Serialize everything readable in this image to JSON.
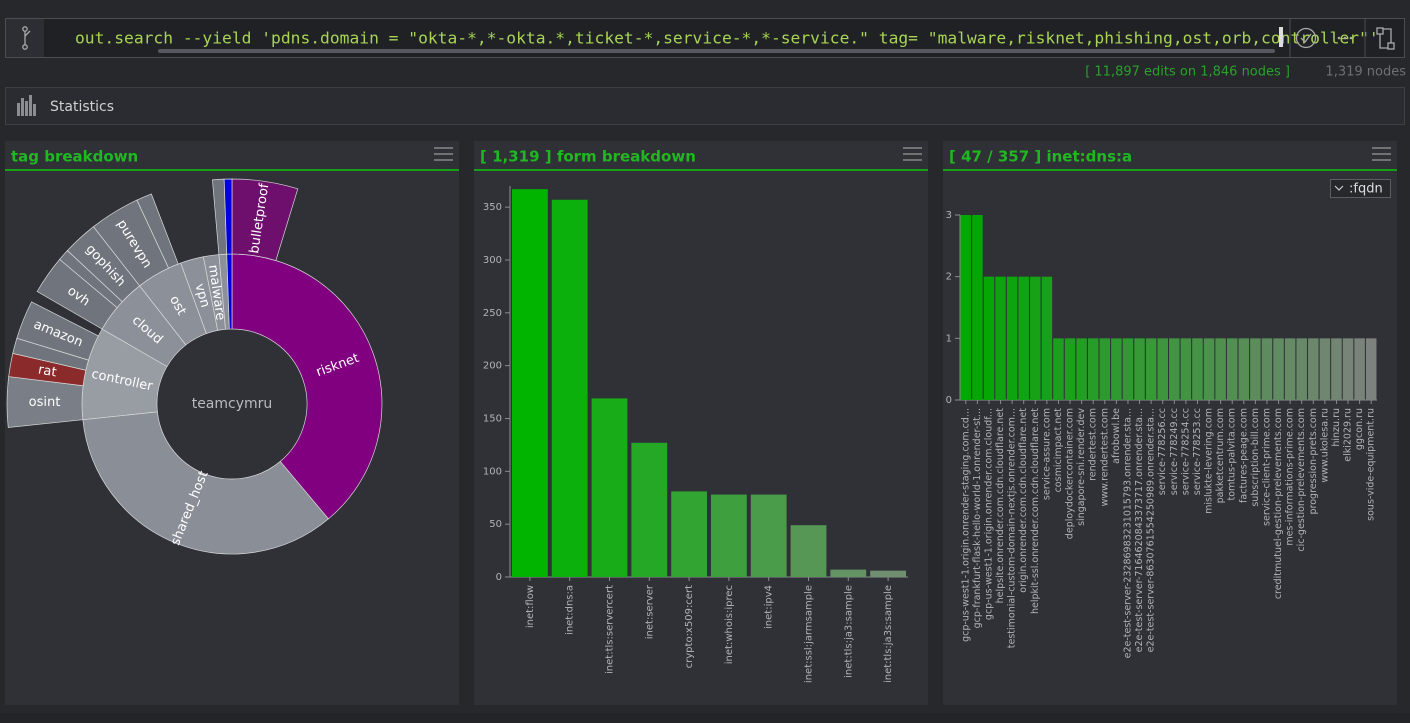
{
  "query": "out.search --yield 'pdns.domain = \"okta-*,*-okta.*,ticket-*,service-*,*-service.\" tag= \"malware,risknet,phishing,ost,orb,controller\"'",
  "status": {
    "edits": "[ 11,897 edits on 1,846 nodes ]",
    "nodes": "1,319 nodes"
  },
  "statistics": "Statistics",
  "chart_data": [
    {
      "type": "sunburst",
      "title": "tag breakdown",
      "center_label": "teamcymru",
      "categories": [
        "risknet",
        "shared_host",
        "controller",
        "cloud",
        "ost",
        "vpn",
        "malware",
        null,
        null
      ],
      "values": [
        140,
        124,
        36,
        22,
        18,
        9,
        6,
        3,
        2
      ],
      "colors": [
        "#800080",
        "#8a8e96",
        "#989ca3",
        "#8c9199",
        "#8c9199",
        "#8c9199",
        "#8c9199",
        "#8c9199",
        "#0000e0"
      ],
      "outer": [
        {
          "parent": 0,
          "name": "bulletproof",
          "value": 17,
          "color": "#6e0f6e"
        },
        {
          "parent": 2,
          "name": "osint",
          "value": 13,
          "color": "#7a7f87"
        },
        {
          "parent": 2,
          "name": "rat",
          "value": 6,
          "color": "#8b2a2a"
        },
        {
          "parent": 2,
          "name": null,
          "value": 4,
          "color": "#70757d"
        },
        {
          "parent": 2,
          "name": "amazon",
          "value": 10,
          "color": "#70757d"
        },
        {
          "parent": 3,
          "name": "ovh",
          "value": 10,
          "color": "#70757d"
        },
        {
          "parent": 3,
          "name": null,
          "value": 3,
          "color": "#70757d"
        },
        {
          "parent": 3,
          "name": "gophish",
          "value": 9,
          "color": "#70757d"
        },
        {
          "parent": 4,
          "name": "purevpn",
          "value": 13,
          "color": "#70757d"
        },
        {
          "parent": 4,
          "name": null,
          "value": 4,
          "color": "#70757d"
        },
        {
          "parent": 7,
          "name": null,
          "value": 3,
          "color": "#70757d"
        },
        {
          "parent": 8,
          "name": null,
          "value": 2,
          "color": "#0000e0"
        }
      ]
    },
    {
      "type": "bar",
      "title": "[ 1,319 ] form breakdown",
      "categories": [
        "inet:flow",
        "inet:dns:a",
        "inet:tls:servercert",
        "inet:server",
        "crypto:x509:cert",
        "inet:whois:iprec",
        "inet:ipv4",
        "inet:ssl:jarmsample",
        "inet:tls:ja3:sample",
        "inet:tls:ja3s:sample"
      ],
      "values": [
        367,
        357,
        169,
        127,
        81,
        78,
        78,
        49,
        7,
        6
      ],
      "color_gradient": [
        "#00b400",
        "#6f8f6f"
      ],
      "ylim": [
        0,
        370
      ],
      "yticks": [
        0,
        50,
        100,
        150,
        200,
        250,
        300,
        350
      ]
    },
    {
      "type": "bar",
      "title": "[ 47 / 357 ] inet:dns:a",
      "dropdown": ":fqdn",
      "categories": [
        "gcp-us-west1-1.origin.onrender-staging.com.cd...",
        "gcp-frankfurt-flask-hello-world-1.onrender-st...",
        "gcp-us-west1-1.origin.onrender.com.cloudf...",
        "helpsite.onrender.com.cdn.cloudflare.net",
        "testimonial-custom-domain-nextjs.onrender.com...",
        "origin.onrender.com.cdn.cloudflare.net",
        "helpkit-ssl.onrender.com.cdn.cloudflare.net",
        "service-assure.com",
        "cosmicimpact.net",
        "deploydockercontainer.com",
        "singapore-sni.render.dev",
        "rendertest.com",
        "www.rendertest.com",
        "afrobowl.be",
        "e2e-test-server-23286983231015793.onrender.sta...",
        "e2e-test-server-7164620843373717.onrender.sta...",
        "e2e-test-server-8630761554250989.onrender.sta...",
        "service-778256.cc",
        "service-778249.cc",
        "service-778254.cc",
        "service-778253.cc",
        "mislukte-levering.com",
        "pakketcentrum.com",
        "tomtus-palvita.com",
        "factures-peage.com",
        "subscription-bill.com",
        "service-client-prime.com",
        "creditmutuel-gestion-prelevements.com",
        "mes-informations-prime.com",
        "cic-gestion-prelevements.com",
        "progression-prets.com",
        "www.ukolesa.ru",
        "hinzu.ru",
        "elki2029.ru",
        "ggcon.ru",
        "sous-vide-equipment.ru"
      ],
      "values": [
        3,
        3,
        2,
        2,
        2,
        2,
        2,
        2,
        1,
        1,
        1,
        1,
        1,
        1,
        1,
        1,
        1,
        1,
        1,
        1,
        1,
        1,
        1,
        1,
        1,
        1,
        1,
        1,
        1,
        1,
        1,
        1,
        1,
        1,
        1,
        1
      ],
      "color_gradient": [
        "#00a800",
        "#7e827e"
      ],
      "ylim": [
        0,
        3
      ],
      "yticks": [
        0,
        1,
        2,
        3
      ]
    }
  ]
}
